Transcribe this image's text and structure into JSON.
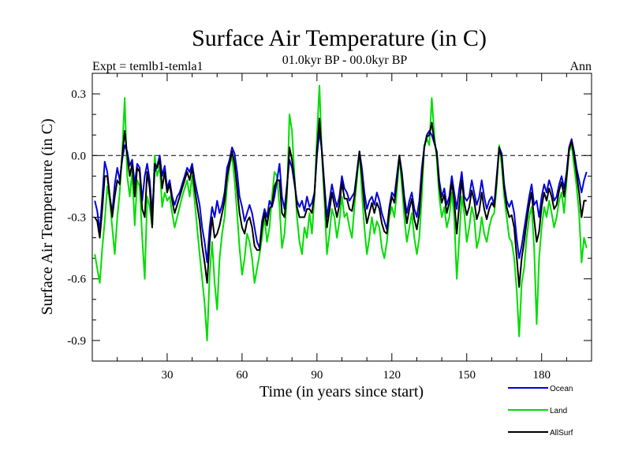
{
  "chart_data": {
    "type": "line",
    "title": "Surface Air Temperature (in C)",
    "subtitle_left": "Expt = temlb1-temla1",
    "subtitle_center": "01.0kyr BP - 00.0kyr BP",
    "subtitle_right": "Ann",
    "xlabel": "Time (in years since start)",
    "ylabel": "Surface Air Temperature (in C)",
    "xlim": [
      0,
      200
    ],
    "ylim": [
      -1.0,
      0.4
    ],
    "xticks": [
      30,
      60,
      90,
      120,
      150,
      180
    ],
    "xtick_labels": [
      "30",
      "60",
      "90",
      "120",
      "150",
      "180"
    ],
    "yticks": [
      0.3,
      0.0,
      -0.3,
      -0.6,
      -0.9
    ],
    "ytick_labels": [
      "0.3",
      "0.0",
      "-0.3",
      "-0.6",
      "-0.9"
    ],
    "reference_line": 0.0,
    "legend_position": "bottom-right",
    "x_start": 1,
    "series": [
      {
        "name": "Ocean",
        "color": "#0000dd",
        "values": [
          -0.22,
          -0.27,
          -0.37,
          -0.2,
          -0.03,
          -0.08,
          -0.2,
          -0.28,
          -0.14,
          -0.06,
          -0.12,
          -0.02,
          0.05,
          0.02,
          -0.05,
          -0.02,
          -0.14,
          -0.04,
          -0.06,
          -0.22,
          -0.1,
          -0.04,
          -0.12,
          -0.28,
          -0.08,
          -0.05,
          0.0,
          -0.1,
          -0.05,
          -0.16,
          -0.12,
          -0.2,
          -0.24,
          -0.2,
          -0.18,
          -0.14,
          -0.1,
          -0.06,
          -0.08,
          -0.04,
          -0.12,
          -0.18,
          -0.24,
          -0.35,
          -0.42,
          -0.52,
          -0.35,
          -0.25,
          -0.3,
          -0.22,
          -0.28,
          -0.24,
          -0.18,
          -0.06,
          -0.02,
          0.04,
          0.01,
          -0.08,
          -0.2,
          -0.25,
          -0.32,
          -0.28,
          -0.24,
          -0.28,
          -0.35,
          -0.42,
          -0.45,
          -0.32,
          -0.26,
          -0.3,
          -0.22,
          -0.25,
          -0.2,
          -0.12,
          -0.04,
          -0.2,
          -0.26,
          -0.14,
          -0.02,
          -0.06,
          -0.14,
          -0.22,
          -0.25,
          -0.22,
          -0.27,
          -0.2,
          -0.25,
          -0.23,
          -0.18,
          0.0,
          0.12,
          0.02,
          -0.14,
          -0.3,
          -0.22,
          -0.14,
          -0.2,
          -0.25,
          -0.2,
          -0.1,
          -0.16,
          -0.18,
          -0.22,
          -0.2,
          -0.18,
          -0.08,
          0.02,
          -0.06,
          -0.18,
          -0.26,
          -0.22,
          -0.2,
          -0.24,
          -0.18,
          -0.22,
          -0.28,
          -0.32,
          -0.36,
          -0.25,
          -0.18,
          -0.2,
          -0.1,
          0.0,
          -0.08,
          -0.2,
          -0.28,
          -0.22,
          -0.18,
          -0.26,
          -0.3,
          -0.22,
          -0.06,
          0.04,
          0.1,
          0.12,
          0.1,
          0.06,
          0.02,
          -0.12,
          -0.2,
          -0.16,
          -0.24,
          -0.2,
          -0.1,
          -0.18,
          -0.26,
          -0.16,
          -0.08,
          -0.2,
          -0.22,
          -0.2,
          -0.12,
          -0.18,
          -0.24,
          -0.2,
          -0.12,
          -0.2,
          -0.26,
          -0.22,
          -0.2,
          -0.24,
          -0.1,
          0.04,
          0.01,
          -0.14,
          -0.22,
          -0.25,
          -0.22,
          -0.28,
          -0.4,
          -0.5,
          -0.44,
          -0.36,
          -0.28,
          -0.2,
          -0.14,
          -0.24,
          -0.22,
          -0.3,
          -0.2,
          -0.14,
          -0.18,
          -0.12,
          -0.16,
          -0.22,
          -0.2,
          -0.14,
          -0.1,
          -0.16,
          -0.08,
          0.04,
          0.08,
          0.02,
          -0.06,
          -0.12,
          -0.18,
          -0.12,
          -0.08
        ]
      },
      {
        "name": "Land",
        "color": "#00dd00",
        "values": [
          -0.48,
          -0.55,
          -0.62,
          -0.45,
          -0.32,
          -0.15,
          -0.22,
          -0.35,
          -0.48,
          -0.3,
          -0.18,
          0.02,
          0.28,
          -0.1,
          -0.2,
          -0.08,
          -0.34,
          -0.12,
          -0.15,
          -0.4,
          -0.6,
          -0.2,
          -0.25,
          -0.35,
          0.0,
          -0.1,
          -0.05,
          -0.25,
          -0.18,
          -0.22,
          -0.2,
          -0.28,
          -0.35,
          -0.3,
          -0.25,
          -0.2,
          -0.16,
          -0.12,
          -0.2,
          -0.1,
          -0.22,
          -0.35,
          -0.48,
          -0.6,
          -0.72,
          -0.9,
          -0.58,
          -0.42,
          -0.62,
          -0.75,
          -0.5,
          -0.38,
          -0.3,
          -0.15,
          -0.05,
          0.0,
          -0.12,
          -0.28,
          -0.45,
          -0.58,
          -0.5,
          -0.38,
          -0.42,
          -0.5,
          -0.62,
          -0.55,
          -0.48,
          -0.4,
          -0.3,
          -0.42,
          -0.35,
          -0.2,
          -0.08,
          -0.1,
          -0.25,
          -0.45,
          -0.38,
          -0.2,
          0.2,
          0.12,
          -0.1,
          -0.3,
          -0.42,
          -0.48,
          -0.35,
          -0.4,
          -0.28,
          -0.38,
          -0.2,
          0.1,
          0.34,
          0.0,
          -0.22,
          -0.48,
          -0.38,
          -0.26,
          -0.3,
          -0.4,
          -0.32,
          -0.2,
          -0.3,
          -0.28,
          -0.35,
          -0.4,
          -0.25,
          -0.12,
          0.02,
          -0.18,
          -0.35,
          -0.48,
          -0.4,
          -0.3,
          -0.38,
          -0.32,
          -0.35,
          -0.45,
          -0.5,
          -0.42,
          -0.3,
          -0.25,
          -0.3,
          -0.18,
          0.0,
          -0.15,
          -0.3,
          -0.42,
          -0.35,
          -0.28,
          -0.4,
          -0.48,
          -0.4,
          -0.2,
          0.05,
          0.08,
          0.05,
          0.28,
          0.1,
          -0.02,
          -0.2,
          -0.3,
          -0.25,
          -0.35,
          -0.3,
          -0.18,
          -0.3,
          -0.6,
          -0.4,
          -0.2,
          -0.28,
          -0.42,
          -0.35,
          -0.25,
          -0.3,
          -0.45,
          -0.4,
          -0.3,
          -0.38,
          -0.42,
          -0.35,
          -0.3,
          -0.28,
          -0.15,
          0.05,
          -0.05,
          -0.2,
          -0.3,
          -0.4,
          -0.42,
          -0.5,
          -0.65,
          -0.88,
          -0.62,
          -0.55,
          -0.4,
          -0.3,
          -0.25,
          -0.45,
          -0.82,
          -0.5,
          -0.35,
          -0.25,
          -0.3,
          -0.22,
          -0.28,
          -0.35,
          -0.3,
          -0.22,
          -0.18,
          -0.28,
          -0.12,
          0.02,
          0.05,
          -0.05,
          -0.15,
          -0.28,
          -0.52,
          -0.4,
          -0.45
        ]
      },
      {
        "name": "AllSurf",
        "color": "#000000",
        "values": [
          -0.3,
          -0.32,
          -0.4,
          -0.26,
          -0.1,
          -0.1,
          -0.2,
          -0.3,
          -0.2,
          -0.12,
          -0.14,
          0.0,
          0.12,
          0.0,
          -0.1,
          -0.04,
          -0.2,
          -0.06,
          -0.08,
          -0.26,
          -0.3,
          -0.08,
          -0.16,
          -0.35,
          -0.04,
          -0.06,
          -0.02,
          -0.16,
          -0.08,
          -0.18,
          -0.14,
          -0.22,
          -0.28,
          -0.24,
          -0.2,
          -0.16,
          -0.12,
          -0.08,
          -0.12,
          -0.06,
          -0.16,
          -0.24,
          -0.32,
          -0.44,
          -0.52,
          -0.62,
          -0.42,
          -0.3,
          -0.4,
          -0.38,
          -0.34,
          -0.28,
          -0.22,
          -0.1,
          -0.04,
          0.02,
          -0.04,
          -0.16,
          -0.28,
          -0.35,
          -0.38,
          -0.32,
          -0.3,
          -0.35,
          -0.44,
          -0.46,
          -0.46,
          -0.35,
          -0.28,
          -0.34,
          -0.26,
          -0.24,
          -0.15,
          -0.12,
          -0.12,
          -0.28,
          -0.3,
          -0.16,
          0.04,
          -0.02,
          -0.12,
          -0.25,
          -0.3,
          -0.3,
          -0.3,
          -0.26,
          -0.26,
          -0.28,
          -0.19,
          0.03,
          0.18,
          0.01,
          -0.17,
          -0.35,
          -0.27,
          -0.18,
          -0.24,
          -0.3,
          -0.24,
          -0.13,
          -0.21,
          -0.21,
          -0.26,
          -0.27,
          -0.2,
          -0.09,
          0.02,
          -0.1,
          -0.24,
          -0.33,
          -0.28,
          -0.23,
          -0.28,
          -0.23,
          -0.26,
          -0.33,
          -0.37,
          -0.38,
          -0.27,
          -0.2,
          -0.23,
          -0.13,
          0.0,
          -0.1,
          -0.23,
          -0.33,
          -0.26,
          -0.21,
          -0.31,
          -0.36,
          -0.28,
          -0.11,
          0.04,
          0.09,
          0.1,
          0.16,
          0.07,
          0.01,
          -0.15,
          -0.23,
          -0.19,
          -0.28,
          -0.23,
          -0.13,
          -0.22,
          -0.38,
          -0.24,
          -0.12,
          -0.23,
          -0.29,
          -0.25,
          -0.17,
          -0.22,
          -0.31,
          -0.27,
          -0.18,
          -0.26,
          -0.31,
          -0.26,
          -0.23,
          -0.25,
          -0.12,
          0.04,
          -0.01,
          -0.16,
          -0.25,
          -0.3,
          -0.29,
          -0.35,
          -0.49,
          -0.64,
          -0.5,
          -0.42,
          -0.32,
          -0.24,
          -0.18,
          -0.31,
          -0.42,
          -0.37,
          -0.25,
          -0.18,
          -0.22,
          -0.16,
          -0.2,
          -0.26,
          -0.24,
          -0.17,
          -0.13,
          -0.2,
          -0.1,
          0.03,
          0.07,
          0.0,
          -0.09,
          -0.18,
          -0.3,
          -0.22,
          -0.22
        ]
      }
    ]
  }
}
